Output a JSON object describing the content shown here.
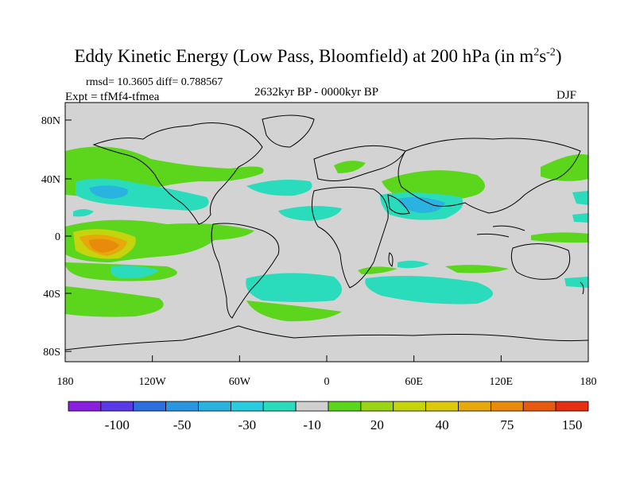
{
  "title": {
    "main": "Eddy Kinetic Energy (Low Pass, Bloomfield) at 200 hPa (in m",
    "sup1": "2",
    "mid": "s",
    "sup2": "-2",
    "end": ")"
  },
  "stats": "rmsd= 10.3605 diff= 0.788567",
  "experiment": "Expt = tfMf4-tfmea",
  "period": "2632kyr BP - 0000kyr BP",
  "season": "DJF",
  "axes": {
    "lat_ticks": [
      "80N",
      "40N",
      "0",
      "40S",
      "80S"
    ],
    "lon_ticks": [
      "180",
      "120W",
      "60W",
      "0",
      "60E",
      "120E",
      "180"
    ]
  },
  "colorbar": {
    "colors": [
      "#8a1fe0",
      "#5a3ae6",
      "#2e6fe0",
      "#2a96e2",
      "#2ab2e0",
      "#2acde0",
      "#2adcbc",
      "#d0d0d0",
      "#5cd61c",
      "#9ad414",
      "#c6d40e",
      "#dcc80c",
      "#e6a80a",
      "#e88a0a",
      "#e85a10",
      "#e62e12"
    ],
    "labels": [
      "-100",
      "-50",
      "-30",
      "-10",
      "20",
      "40",
      "75",
      "150"
    ]
  },
  "palette": {
    "ocean_bg": "#d3d3d3",
    "coast": "#000000"
  }
}
